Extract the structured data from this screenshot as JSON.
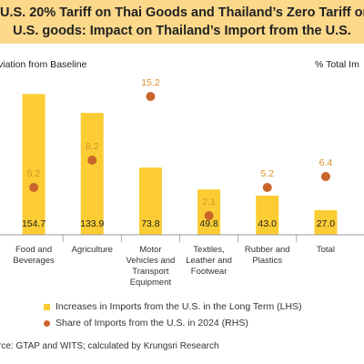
{
  "header": {
    "title_line1": "U.S. 20% Tariff on Thai Goods and Thailand’s Zero Tariff on",
    "title_line2": "U.S. goods: Impact on Thailand’s Import from the U.S."
  },
  "chart_data": {
    "type": "bar",
    "left_axis_label": "viation from Baseline",
    "right_axis_label": "% Total Im",
    "categories": [
      [
        "Food and",
        "Beverages"
      ],
      [
        "Agriculture"
      ],
      [
        "Motor",
        "Vehicles and",
        "Transport",
        "Equipment"
      ],
      [
        "Textiles,",
        "Leather and",
        "Footwear"
      ],
      [
        "Rubber and",
        "Plastics"
      ],
      [
        "Total"
      ]
    ],
    "series": [
      {
        "name": "Increases in Imports from the U.S. in the Long Term (LHS)",
        "axis": "left",
        "color": "#fbcc33",
        "values": [
          154.7,
          133.9,
          73.8,
          49.8,
          43.0,
          27.0
        ],
        "labels": [
          "154.7",
          "133.9",
          "73.8",
          "49.8",
          "43.0",
          "27.0"
        ]
      },
      {
        "name": "Share of Imports from the U.S. in 2024 (RHS)",
        "axis": "right",
        "color": "#c9652a",
        "values": [
          5.2,
          8.2,
          15.2,
          2.1,
          5.2,
          6.4
        ],
        "labels": [
          "5.2",
          "8.2",
          "15.2",
          "2.1",
          "5.2",
          "6.4"
        ]
      }
    ],
    "ylim_left": [
      0,
      170
    ],
    "ylim_right": [
      0,
      17
    ],
    "grid": false,
    "legend": "bottom"
  },
  "legend": {
    "bars": "Increases in Imports from the U.S. in the Long Term (LHS)",
    "dots": "Share of Imports from the U.S. in 2024 (RHS)"
  },
  "source": "rce: GTAP and WITS; calculated by Krungsri Research"
}
